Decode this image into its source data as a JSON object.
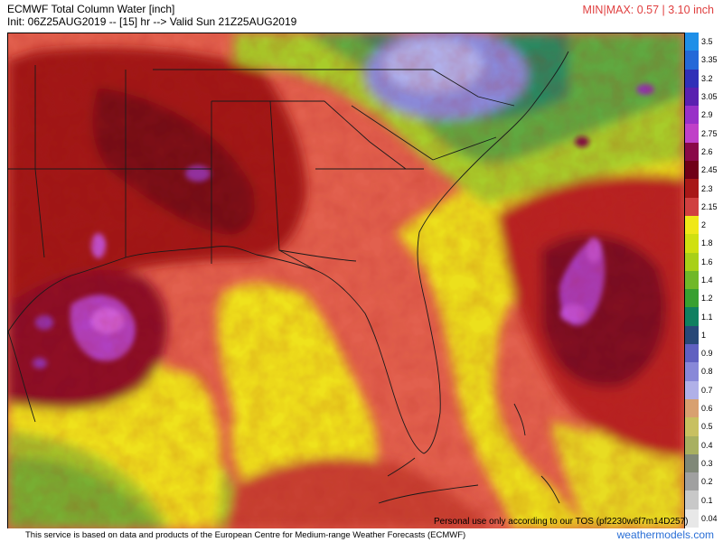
{
  "header": {
    "title": "ECMWF Total Column Water [inch]",
    "init": "Init: 06Z25AUG2019 -- [15] hr --> Valid Sun 21Z25AUG2019",
    "minmax": "MIN|MAX: 0.57 | 3.10 inch"
  },
  "map": {
    "region": "Southeastern United States, Gulf of Mexico, western Atlantic",
    "variable": "Total Column Water",
    "units": "inch"
  },
  "colorbar": {
    "levels": [
      {
        "label": "3.5",
        "color": "#1e8fe8"
      },
      {
        "label": "3.35",
        "color": "#2468d8"
      },
      {
        "label": "3.2",
        "color": "#3030b8"
      },
      {
        "label": "3.05",
        "color": "#5a20b0"
      },
      {
        "label": "2.9",
        "color": "#9830c8"
      },
      {
        "label": "2.75",
        "color": "#c040c8"
      },
      {
        "label": "2.6",
        "color": "#8a0848"
      },
      {
        "label": "2.45",
        "color": "#700018"
      },
      {
        "label": "2.3",
        "color": "#a81818"
      },
      {
        "label": "2.15",
        "color": "#d04040"
      },
      {
        "label": "2",
        "color": "#f0e818"
      },
      {
        "label": "1.8",
        "color": "#d0e010"
      },
      {
        "label": "1.6",
        "color": "#a8d018"
      },
      {
        "label": "1.4",
        "color": "#70b828"
      },
      {
        "label": "1.2",
        "color": "#38a030"
      },
      {
        "label": "1.1",
        "color": "#108060"
      },
      {
        "label": "1",
        "color": "#284878"
      },
      {
        "label": "0.9",
        "color": "#6060c0"
      },
      {
        "label": "0.8",
        "color": "#8888d8"
      },
      {
        "label": "0.7",
        "color": "#b0b0e8"
      },
      {
        "label": "0.6",
        "color": "#d8a070"
      },
      {
        "label": "0.5",
        "color": "#c8c060"
      },
      {
        "label": "0.4",
        "color": "#a8b060"
      },
      {
        "label": "0.3",
        "color": "#808878"
      },
      {
        "label": "0.2",
        "color": "#a0a0a0"
      },
      {
        "label": "0.1",
        "color": "#c8c8c8"
      },
      {
        "label": "0.04",
        "color": "#e8e8e8"
      }
    ]
  },
  "footer": {
    "personal_use": "Personal use only according to our TOS (pf2230w6f7m14D257)",
    "notice": "This service is based on data and products of the European Centre for Medium-range Weather Forecasts (ECMWF)",
    "brand": "weathermodels.com"
  }
}
